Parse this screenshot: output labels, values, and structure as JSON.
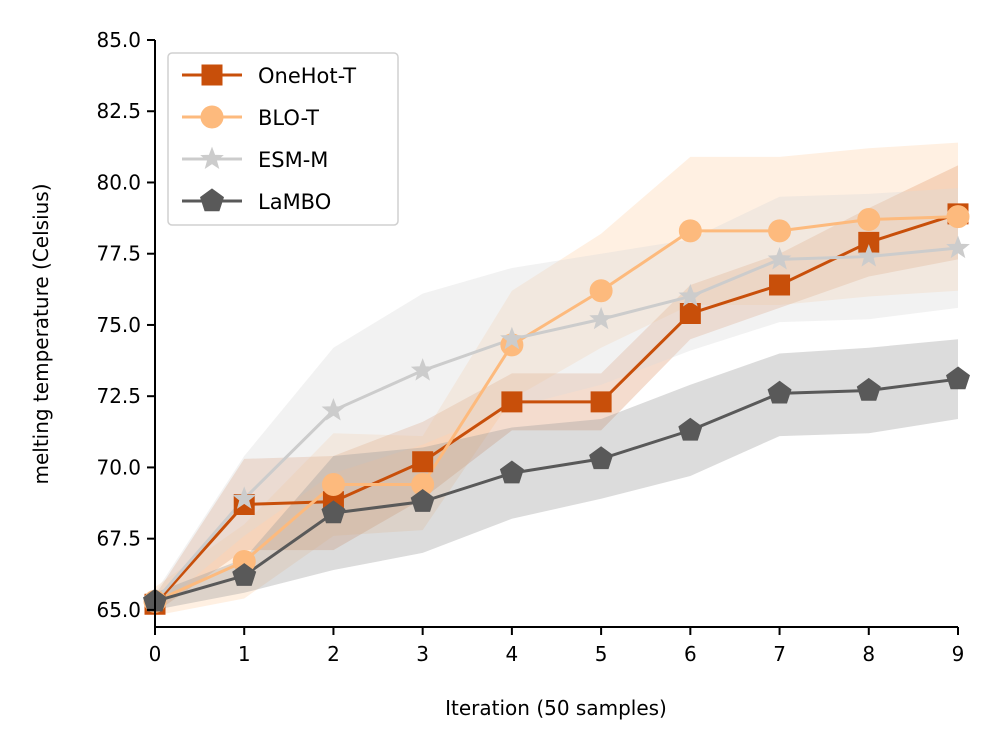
{
  "chart_data": {
    "type": "line",
    "title": "",
    "xlabel": "Iteration (50 samples)",
    "ylabel": "melting temperature (Celsius)",
    "x": [
      0,
      1,
      2,
      3,
      4,
      5,
      6,
      7,
      8,
      9
    ],
    "xlim": [
      0,
      9
    ],
    "ylim": [
      64.4,
      85.0
    ],
    "xticks": [
      0,
      1,
      2,
      3,
      4,
      5,
      6,
      7,
      8,
      9
    ],
    "xtick_labels": [
      "0",
      "1",
      "2",
      "3",
      "4",
      "5",
      "6",
      "7",
      "8",
      "9"
    ],
    "yticks": [
      65.0,
      67.5,
      70.0,
      72.5,
      75.0,
      77.5,
      80.0,
      82.5,
      85.0
    ],
    "ytick_labels": [
      "65.0",
      "67.5",
      "70.0",
      "72.5",
      "75.0",
      "77.5",
      "80.0",
      "82.5",
      "85.0"
    ],
    "grid": false,
    "legend_position": "top-left",
    "series": [
      {
        "name": "OneHot-T",
        "color": "#c84f0a",
        "marker": "square",
        "values": [
          65.2,
          68.7,
          68.8,
          70.2,
          72.3,
          72.3,
          75.4,
          76.4,
          77.9,
          78.9
        ],
        "band_low": [
          64.9,
          67.1,
          67.1,
          68.9,
          71.3,
          71.3,
          74.5,
          75.6,
          76.7,
          77.3
        ],
        "band_high": [
          65.5,
          70.3,
          70.4,
          71.6,
          73.3,
          73.3,
          76.4,
          77.5,
          79.1,
          80.6
        ],
        "band_color": "#c84f0a",
        "band_opacity": 0.2
      },
      {
        "name": "BLO-T",
        "color": "#fdba7d",
        "marker": "circle",
        "values": [
          65.3,
          66.7,
          69.4,
          69.4,
          74.3,
          76.2,
          78.3,
          78.3,
          78.7,
          78.8
        ],
        "band_low": [
          64.8,
          65.4,
          67.6,
          67.8,
          72.4,
          74.2,
          75.7,
          75.7,
          76.0,
          76.2
        ],
        "band_high": [
          65.8,
          68.0,
          71.2,
          71.1,
          76.2,
          78.2,
          80.9,
          80.9,
          81.2,
          81.4
        ],
        "band_color": "#fdba7d",
        "band_opacity": 0.22
      },
      {
        "name": "ESM-M",
        "color": "#cccccc",
        "marker": "star",
        "values": [
          65.3,
          68.9,
          72.0,
          73.4,
          74.5,
          75.2,
          76.0,
          77.3,
          77.4,
          77.7
        ],
        "band_low": [
          65.0,
          67.6,
          69.8,
          70.8,
          72.1,
          72.9,
          74.1,
          75.1,
          75.2,
          75.6
        ],
        "band_high": [
          65.6,
          70.4,
          74.2,
          76.1,
          77.0,
          77.5,
          78.0,
          79.5,
          79.6,
          79.8
        ],
        "band_color": "#d9d9d9",
        "band_opacity": 0.35
      },
      {
        "name": "LaMBO",
        "color": "#595959",
        "marker": "pentagon",
        "values": [
          65.3,
          66.2,
          68.4,
          68.8,
          69.8,
          70.3,
          71.3,
          72.6,
          72.7,
          73.1
        ],
        "band_low": [
          65.0,
          65.6,
          66.4,
          67.0,
          68.2,
          68.9,
          69.7,
          71.1,
          71.2,
          71.7
        ],
        "band_high": [
          65.6,
          66.8,
          70.4,
          70.7,
          71.4,
          71.7,
          72.9,
          74.0,
          74.2,
          74.5
        ],
        "band_color": "#9a9a9a",
        "band_opacity": 0.35
      }
    ]
  }
}
